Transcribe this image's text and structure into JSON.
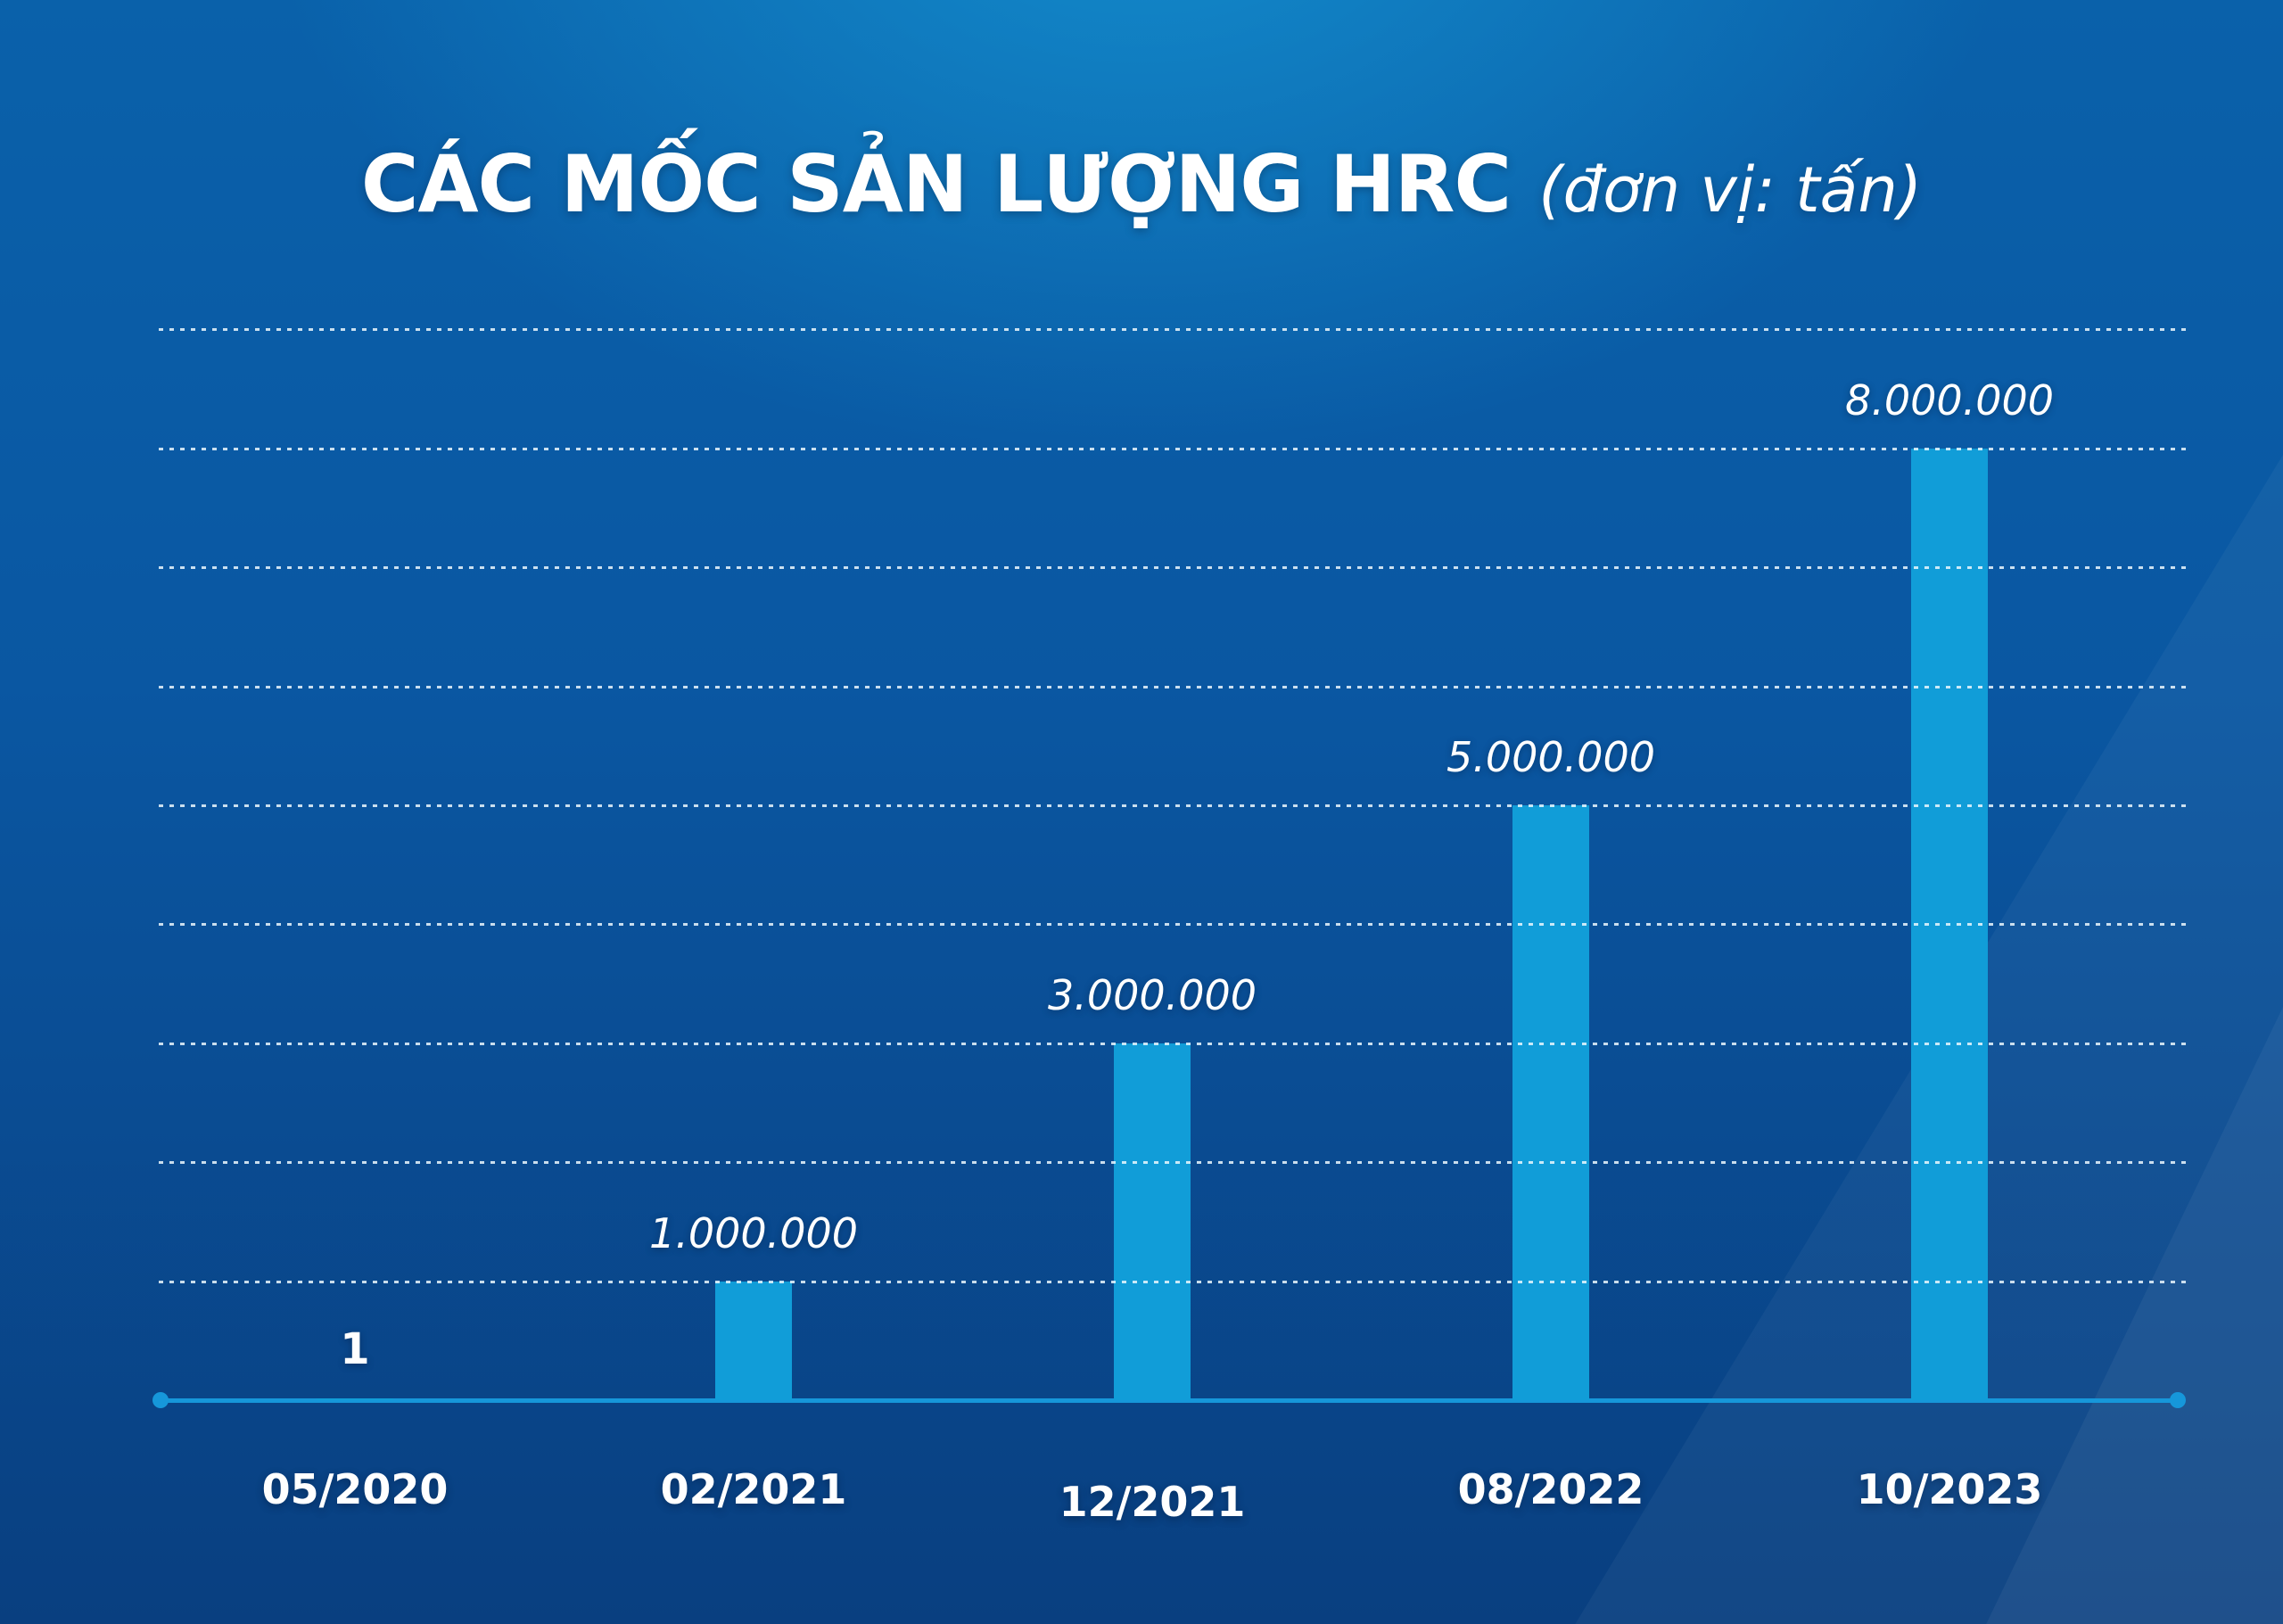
{
  "chart_data": {
    "type": "bar",
    "title": "CÁC MỐC SẢN LƯỢNG HRC",
    "unit_note": "(đơn vị: tấn)",
    "categories": [
      "05/2020",
      "02/2021",
      "12/2021",
      "08/2022",
      "10/2023"
    ],
    "values": [
      1,
      1000000,
      3000000,
      5000000,
      8000000
    ],
    "value_labels": [
      "1",
      "1.000.000",
      "3.000.000",
      "5.000.000",
      "8.000.000"
    ],
    "xlabel": "",
    "ylabel": "",
    "ylim": [
      0,
      9000000
    ],
    "gridline_step": 1000000,
    "grid": "horizontal-dotted",
    "legend": "none",
    "axis_ticks_visible": false
  },
  "colors": {
    "background_top_center": "#0d84c4",
    "background_edge": "#0a5aa5",
    "background_bottom": "#093f80",
    "bar": "#119dd8",
    "axis_line": "#1697da",
    "gridline": "#ebf7fd",
    "text": "#ffffff"
  }
}
